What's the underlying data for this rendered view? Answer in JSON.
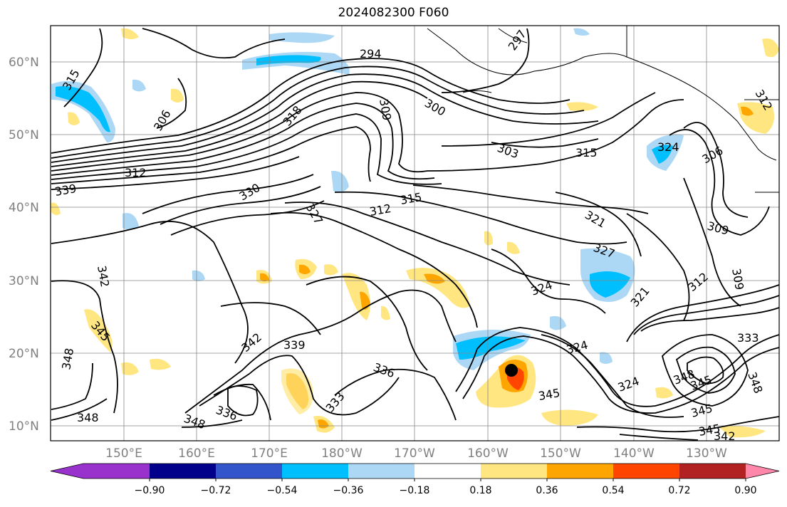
{
  "title": "2024082300 F060",
  "lat_ticks": [
    "60°N",
    "50°N",
    "40°N",
    "30°N",
    "20°N",
    "10°N"
  ],
  "lon_ticks": [
    "150°E",
    "160°E",
    "170°E",
    "180°W",
    "170°W",
    "160°W",
    "150°W",
    "140°W",
    "130°W"
  ],
  "colorbar": {
    "ticks": [
      "−0.90",
      "−0.72",
      "−0.54",
      "−0.36",
      "−0.18",
      "0.18",
      "0.36",
      "0.54",
      "0.72",
      "0.90"
    ],
    "colors": [
      "#9932cc",
      "#00008b",
      "#3355cc",
      "#00bfff",
      "#add8f5",
      "#ffffff",
      "#ffe680",
      "#ffa500",
      "#ff4500",
      "#b22222",
      "#ff88aa",
      "#ff88aa"
    ]
  },
  "contour_labels": [
    {
      "text": "294"
    },
    {
      "text": "297"
    },
    {
      "text": "300"
    },
    {
      "text": "303"
    },
    {
      "text": "306"
    },
    {
      "text": "306"
    },
    {
      "text": "309"
    },
    {
      "text": "309"
    },
    {
      "text": "312"
    },
    {
      "text": "312"
    },
    {
      "text": "312"
    },
    {
      "text": "315"
    },
    {
      "text": "315"
    },
    {
      "text": "315"
    },
    {
      "text": "318"
    },
    {
      "text": "321"
    },
    {
      "text": "321"
    },
    {
      "text": "324"
    },
    {
      "text": "324"
    },
    {
      "text": "324"
    },
    {
      "text": "324"
    },
    {
      "text": "327"
    },
    {
      "text": "327"
    },
    {
      "text": "330"
    },
    {
      "text": "333"
    },
    {
      "text": "333"
    },
    {
      "text": "336"
    },
    {
      "text": "336"
    },
    {
      "text": "339"
    },
    {
      "text": "339"
    },
    {
      "text": "342"
    },
    {
      "text": "342"
    },
    {
      "text": "345"
    },
    {
      "text": "345"
    },
    {
      "text": "345"
    },
    {
      "text": "345"
    },
    {
      "text": "348"
    },
    {
      "text": "348"
    },
    {
      "text": "348"
    },
    {
      "text": "348"
    },
    {
      "text": "348"
    },
    {
      "text": "345"
    },
    {
      "text": "342"
    },
    {
      "text": "312"
    },
    {
      "text": "309"
    }
  ]
}
